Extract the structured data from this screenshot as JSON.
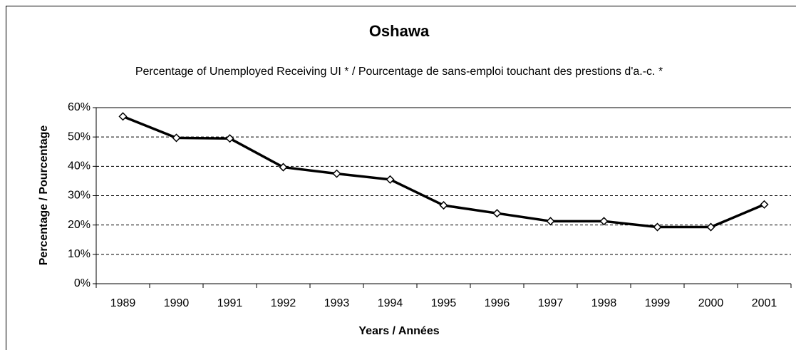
{
  "chart_data": {
    "type": "line",
    "title": "Oshawa",
    "subtitle": "Percentage of Unemployed Receiving UI * / Pourcentage de sans-emploi touchant des prestions d'a.-c. *",
    "x_label": "Years / Années",
    "y_label": "Percentage / Pourcentage",
    "categories": [
      "1989",
      "1990",
      "1991",
      "1992",
      "1993",
      "1994",
      "1995",
      "1996",
      "1997",
      "1998",
      "1999",
      "2000",
      "2001"
    ],
    "series": [
      {
        "name": "Oshawa",
        "color": "#000000",
        "values": [
          57,
          49.7,
          49.5,
          39.7,
          37.5,
          35.5,
          26.7,
          24,
          21.3,
          21.3,
          19.3,
          19.3,
          27
        ]
      }
    ],
    "ylim": [
      0,
      60
    ],
    "yticks": [
      {
        "value": 0,
        "label": "0%"
      },
      {
        "value": 10,
        "label": "10%"
      },
      {
        "value": 20,
        "label": "20%"
      },
      {
        "value": 30,
        "label": "30%"
      },
      {
        "value": 40,
        "label": "40%"
      },
      {
        "value": 50,
        "label": "50%"
      },
      {
        "value": 60,
        "label": "60%"
      }
    ],
    "grid": true
  }
}
